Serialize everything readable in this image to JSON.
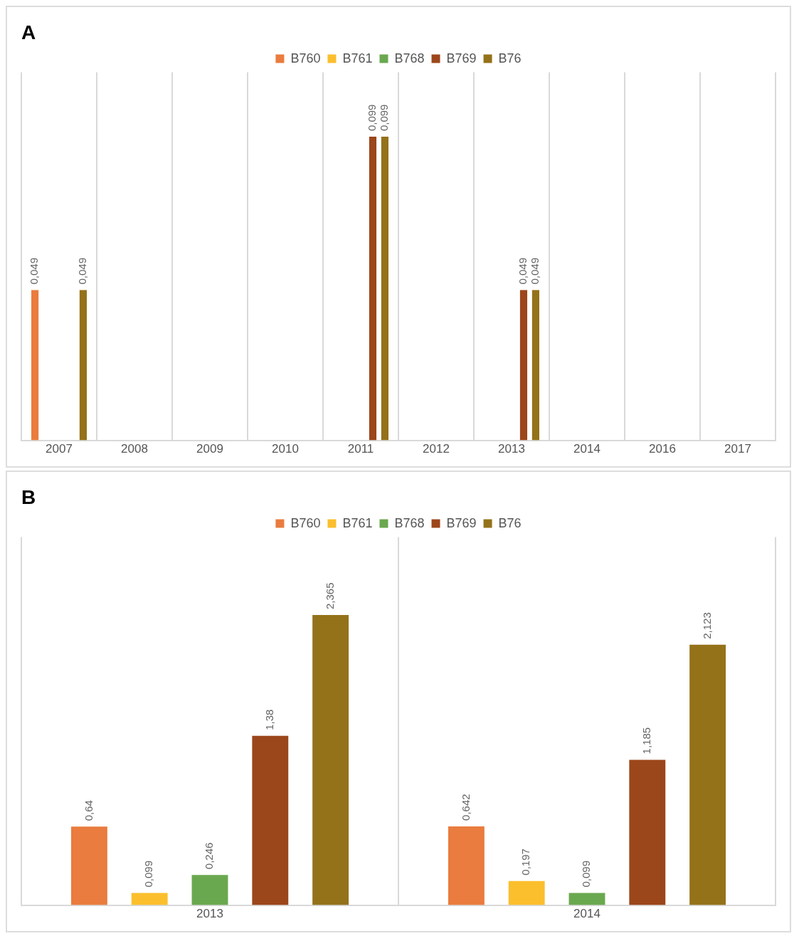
{
  "chart_data": [
    {
      "type": "bar",
      "title": "A",
      "categories": [
        "2007",
        "2008",
        "2009",
        "2010",
        "2011",
        "2012",
        "2013",
        "2014",
        "2016",
        "2017"
      ],
      "legend": "top",
      "grid": "x",
      "tick_labels": "x",
      "series": [
        {
          "name": "B760",
          "color": "#e97c3e",
          "values": [
            0.049,
            null,
            null,
            null,
            null,
            null,
            null,
            null,
            null,
            null
          ],
          "value_labels": [
            "0,049",
            null,
            null,
            null,
            null,
            null,
            null,
            null,
            null,
            null
          ]
        },
        {
          "name": "B761",
          "color": "#fbbf2d",
          "values": [
            null,
            null,
            null,
            null,
            null,
            null,
            null,
            null,
            null,
            null
          ],
          "value_labels": [
            null,
            null,
            null,
            null,
            null,
            null,
            null,
            null,
            null,
            null
          ]
        },
        {
          "name": "B768",
          "color": "#6aa84f",
          "values": [
            null,
            null,
            null,
            null,
            null,
            null,
            null,
            null,
            null,
            null
          ],
          "value_labels": [
            null,
            null,
            null,
            null,
            null,
            null,
            null,
            null,
            null,
            null
          ]
        },
        {
          "name": "B769",
          "color": "#9c461b",
          "values": [
            null,
            null,
            null,
            null,
            0.099,
            null,
            0.049,
            null,
            null,
            null
          ],
          "value_labels": [
            null,
            null,
            null,
            null,
            "0,099",
            null,
            "0,049",
            null,
            null,
            null
          ]
        },
        {
          "name": "B76",
          "color": "#94721a",
          "values": [
            0.049,
            null,
            null,
            null,
            0.099,
            null,
            0.049,
            null,
            null,
            null
          ],
          "value_labels": [
            "0,049",
            null,
            null,
            null,
            "0,099",
            null,
            "0,049",
            null,
            null,
            null
          ]
        }
      ]
    },
    {
      "type": "bar",
      "title": "B",
      "categories": [
        "2013",
        "2014"
      ],
      "legend": "top",
      "grid": "x",
      "tick_labels": "x",
      "series": [
        {
          "name": "B760",
          "color": "#e97c3e",
          "values": [
            0.64,
            0.642
          ],
          "value_labels": [
            "0,64",
            "0,642"
          ]
        },
        {
          "name": "B761",
          "color": "#fbbf2d",
          "values": [
            0.099,
            0.197
          ],
          "value_labels": [
            "0,099",
            "0,197"
          ]
        },
        {
          "name": "B768",
          "color": "#6aa84f",
          "values": [
            0.246,
            0.099
          ],
          "value_labels": [
            "0,246",
            "0,099"
          ]
        },
        {
          "name": "B769",
          "color": "#9c461b",
          "values": [
            1.38,
            1.185
          ],
          "value_labels": [
            "1,38",
            "1,185"
          ]
        },
        {
          "name": "B76",
          "color": "#94721a",
          "values": [
            2.365,
            2.123
          ],
          "value_labels": [
            "2,365",
            "2,123"
          ]
        }
      ]
    }
  ]
}
